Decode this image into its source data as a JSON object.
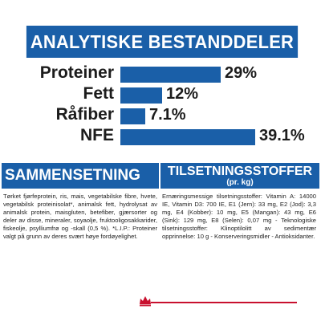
{
  "header": {
    "title": "ANALYTISKE BESTANDDELER"
  },
  "chart_data": {
    "type": "bar",
    "categories": [
      "Proteiner",
      "Fett",
      "Råfiber",
      "NFE"
    ],
    "values": [
      29,
      12,
      7.1,
      39.1
    ],
    "value_labels": [
      "29%",
      "12%",
      "7.1%",
      "39.1%"
    ],
    "unit": "%",
    "orientation": "horizontal"
  },
  "composition": {
    "heading": "SAMMENSETNING",
    "text": "Tørket fjørfeprotein, ris, mais, vegetabilske fibre, hvete, vegetabilsk proteinisolat*, animalsk fett, hydrolysat av animalsk protein, maisgluten, betefiber, gjærsorter og deler av disse, mineraler, soyaolje, fruktooligosakkarider, fiskeolje, psylliumfrø og -skall (0,5 %). *L.I.P.: Proteiner valgt på grunn av deres svært høye fordøyelighet."
  },
  "additives": {
    "heading": "TILSETNINGSSTOFFER",
    "subheading": "(pr. kg)",
    "text": "Ernæringsmessige tilsetningsstoffer: Vitamin A: 14000 IE, Vitamin D3: 700 IE, E1 (Jern): 33 mg, E2 (Jod): 3,3 mg, E4 (Kobber): 10 mg, E5 (Mangan): 43 mg, E6 (Sink): 129 mg, E8 (Selen): 0,07 mg - Teknologiske tilsetningsstoffer: Klinoptilolitt av sedimentær opprinnelse: 10 g - Konserveringsmidler - Antioksidanter."
  },
  "colors": {
    "brand_blue": "#1a5fa8",
    "brand_red": "#c8102e",
    "text": "#1c1c1c"
  },
  "footer": {
    "logo_icon": "crown-icon"
  }
}
